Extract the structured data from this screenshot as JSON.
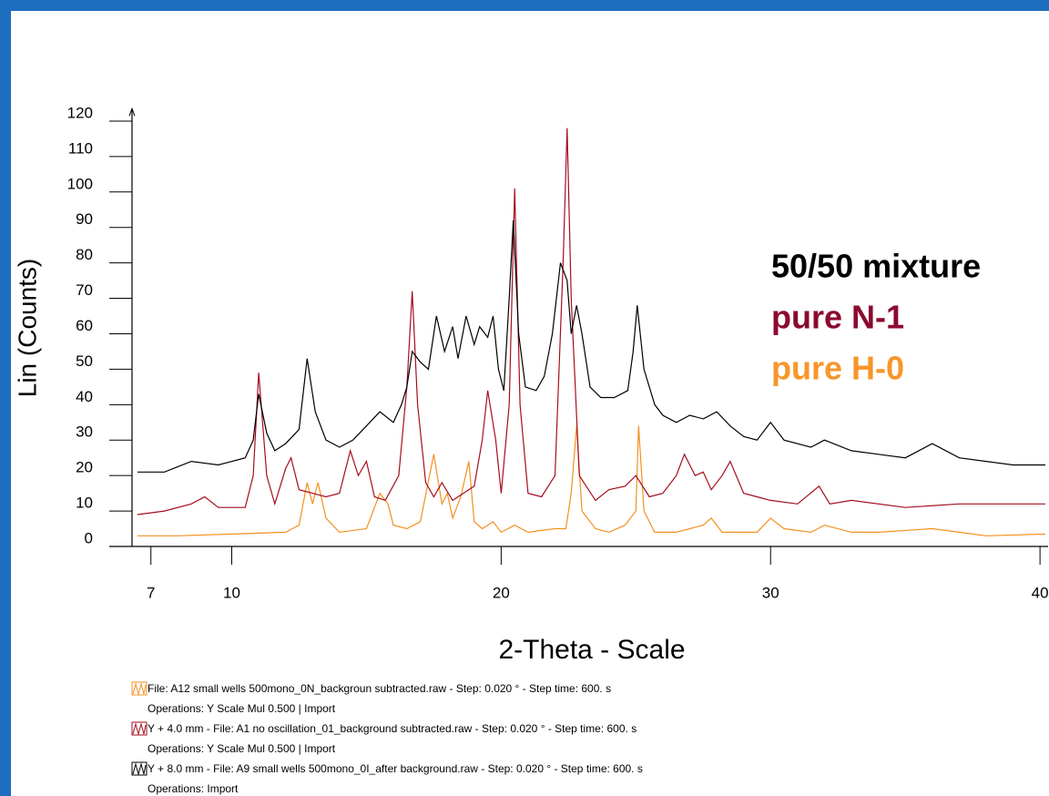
{
  "chart_data": {
    "type": "line",
    "ylabel": "Lin (Counts)",
    "xlabel": "2-Theta - Scale",
    "xlim": [
      6.3,
      40.3
    ],
    "xticks": [
      7,
      10,
      20,
      30,
      40
    ],
    "ylim": [
      0,
      123.5
    ],
    "yticks": [
      0,
      10,
      20,
      30,
      40,
      50,
      60,
      70,
      80,
      90,
      100,
      110,
      120
    ],
    "annotations": [
      {
        "text": "50/50 mixture",
        "color": "#000000"
      },
      {
        "text": "pure N-1",
        "color": "#8b0a30"
      },
      {
        "text": "pure H-0",
        "color": "#f7962a"
      }
    ],
    "series": [
      {
        "name": "File: A12 small wells 500mono_0N_backgroun subtracted.raw - Step: 0.020 ° - Step time: 600. s",
        "operations": "Operations: Y Scale Mul  0.500 | Import",
        "color": "#f39020",
        "x": [
          6.5,
          8,
          10,
          12,
          12.5,
          12.8,
          13.0,
          13.2,
          13.5,
          14,
          15,
          15.5,
          15.8,
          16,
          16.5,
          17,
          17.5,
          17.8,
          18.0,
          18.2,
          18.5,
          18.8,
          19.0,
          19.3,
          19.7,
          20,
          20.5,
          21,
          22,
          22.4,
          22.6,
          22.8,
          23.0,
          23.5,
          24,
          24.6,
          25,
          25.1,
          25.3,
          25.7,
          26.5,
          27,
          27.5,
          27.8,
          28.2,
          29.5,
          30,
          30.5,
          31.5,
          32,
          33,
          34,
          36,
          37,
          38,
          40.2
        ],
        "values": [
          3,
          3,
          3.5,
          4,
          6,
          18,
          12,
          18,
          8,
          4,
          5,
          15,
          12,
          6,
          5,
          7,
          26,
          12,
          15,
          8,
          14,
          24,
          7,
          5,
          7,
          4,
          6,
          4,
          5,
          5,
          15,
          34,
          10,
          5,
          4,
          6,
          10,
          34,
          10,
          4,
          4,
          5,
          6,
          8,
          4,
          4,
          8,
          5,
          4,
          6,
          4,
          4,
          5,
          4,
          3,
          3.5
        ]
      },
      {
        "name": "Y + 4.0 mm - File: A1 no oscillation_01_background subtracted.raw - Step: 0.020 ° - Step time: 600. s",
        "operations": "Operations: Y Scale Mul  0.500 | Import",
        "color": "#a50e1e",
        "x": [
          6.5,
          7.5,
          8.5,
          9,
          9.5,
          10.5,
          10.8,
          11.0,
          11.3,
          11.6,
          12,
          12.2,
          12.5,
          13,
          13.5,
          14,
          14.4,
          14.7,
          15,
          15.3,
          15.7,
          16.2,
          16.5,
          16.7,
          16.9,
          17.2,
          17.5,
          17.8,
          18.2,
          18.6,
          19.0,
          19.3,
          19.5,
          19.8,
          20.0,
          20.3,
          20.5,
          20.7,
          21,
          21.5,
          22,
          22.3,
          22.45,
          22.6,
          22.9,
          23.5,
          24,
          24.6,
          25,
          25.5,
          26,
          26.5,
          26.8,
          27.2,
          27.5,
          27.8,
          28.2,
          28.5,
          29,
          29.5,
          30,
          31,
          31.8,
          32.2,
          33,
          35,
          37,
          40.2
        ],
        "values": [
          9,
          10,
          12,
          14,
          11,
          11,
          20,
          49,
          20,
          12,
          22,
          25,
          16,
          15,
          14,
          15,
          27,
          20,
          24,
          14,
          13,
          20,
          45,
          72,
          40,
          18,
          14,
          18,
          13,
          15,
          17,
          30,
          44,
          30,
          15,
          40,
          101,
          40,
          15,
          14,
          20,
          80,
          118,
          70,
          20,
          13,
          16,
          17,
          20,
          14,
          15,
          20,
          26,
          20,
          21,
          16,
          20,
          24,
          15,
          14,
          13,
          12,
          17,
          12,
          13,
          11,
          12,
          12
        ]
      },
      {
        "name": "Y + 8.0 mm - File: A9 small wells 500mono_0I_after background.raw - Step: 0.020 ° - Step time: 600. s",
        "operations": "Operations: Import",
        "color": "#000000",
        "x": [
          6.5,
          7.5,
          8.5,
          9.5,
          10.5,
          10.8,
          11.0,
          11.3,
          11.6,
          12,
          12.5,
          12.8,
          13.1,
          13.5,
          14,
          14.5,
          15,
          15.5,
          16,
          16.3,
          16.5,
          16.7,
          17,
          17.3,
          17.6,
          17.9,
          18.2,
          18.4,
          18.7,
          19,
          19.2,
          19.5,
          19.7,
          19.9,
          20.1,
          20.3,
          20.45,
          20.65,
          20.9,
          21.3,
          21.6,
          21.9,
          22.2,
          22.45,
          22.6,
          22.8,
          23.0,
          23.3,
          23.7,
          24.2,
          24.7,
          24.9,
          25.05,
          25.3,
          25.7,
          26,
          26.5,
          27,
          27.5,
          28,
          28.5,
          29,
          29.5,
          30,
          30.5,
          31.5,
          32,
          33,
          34,
          35,
          36,
          37,
          38,
          39,
          40.2
        ],
        "values": [
          21,
          21,
          24,
          23,
          25,
          30,
          43,
          32,
          27,
          29,
          33,
          53,
          38,
          30,
          28,
          30,
          34,
          38,
          35,
          40,
          45,
          55,
          52,
          50,
          65,
          55,
          62,
          53,
          65,
          57,
          62,
          59,
          65,
          50,
          44,
          70,
          92,
          60,
          45,
          44,
          48,
          60,
          80,
          75,
          60,
          68,
          60,
          45,
          42,
          42,
          44,
          55,
          68,
          50,
          40,
          37,
          35,
          37,
          36,
          38,
          34,
          31,
          30,
          35,
          30,
          28,
          30,
          27,
          26,
          25,
          29,
          25,
          24,
          23,
          23
        ]
      }
    ]
  }
}
